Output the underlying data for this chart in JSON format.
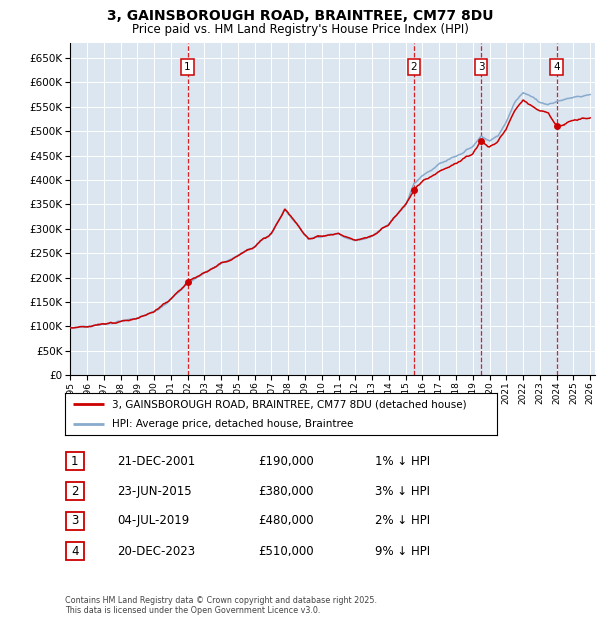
{
  "title": "3, GAINSBOROUGH ROAD, BRAINTREE, CM77 8DU",
  "subtitle": "Price paid vs. HM Land Registry's House Price Index (HPI)",
  "ylim": [
    0,
    680000
  ],
  "xlim_start": 1995.0,
  "xlim_end": 2026.3,
  "background_color": "#dce6f1",
  "grid_color": "#ffffff",
  "sale_color": "#cc0000",
  "hpi_color": "#88aacc",
  "sale_label": "3, GAINSBOROUGH ROAD, BRAINTREE, CM77 8DU (detached house)",
  "hpi_label": "HPI: Average price, detached house, Braintree",
  "transactions": [
    {
      "num": 1,
      "date": "21-DEC-2001",
      "price": 190000,
      "pct": "1%",
      "x": 2002.0
    },
    {
      "num": 2,
      "date": "23-JUN-2015",
      "price": 380000,
      "pct": "3%",
      "x": 2015.5
    },
    {
      "num": 3,
      "date": "04-JUL-2019",
      "price": 480000,
      "pct": "2%",
      "x": 2019.5
    },
    {
      "num": 4,
      "date": "20-DEC-2023",
      "price": 510000,
      "pct": "9%",
      "x": 2024.0
    }
  ],
  "footer": "Contains HM Land Registry data © Crown copyright and database right 2025.\nThis data is licensed under the Open Government Licence v3.0.",
  "hpi_anchors_x": [
    1995.0,
    1996.0,
    1997.0,
    1998.0,
    1999.0,
    2000.0,
    2001.0,
    2002.0,
    2003.0,
    2004.0,
    2005.0,
    2006.0,
    2007.0,
    2007.8,
    2008.5,
    2009.2,
    2010.0,
    2011.0,
    2012.0,
    2013.0,
    2014.0,
    2015.0,
    2015.5,
    2016.0,
    2016.5,
    2017.0,
    2017.5,
    2018.0,
    2018.5,
    2019.0,
    2019.5,
    2020.0,
    2020.5,
    2021.0,
    2021.5,
    2022.0,
    2022.5,
    2023.0,
    2023.5,
    2024.0,
    2024.5,
    2025.0,
    2025.5,
    2026.0
  ],
  "hpi_anchors_y": [
    97000,
    100000,
    104000,
    110000,
    116000,
    130000,
    155000,
    188000,
    210000,
    228000,
    245000,
    265000,
    290000,
    340000,
    310000,
    280000,
    285000,
    290000,
    275000,
    285000,
    310000,
    350000,
    392000,
    410000,
    420000,
    432000,
    440000,
    448000,
    458000,
    468000,
    490000,
    480000,
    490000,
    520000,
    560000,
    580000,
    570000,
    560000,
    555000,
    561000,
    565000,
    570000,
    572000,
    575000
  ],
  "sale_anchors_x": [
    1995.0,
    1996.0,
    1997.0,
    1998.0,
    1999.0,
    2000.0,
    2001.0,
    2002.0,
    2003.0,
    2004.0,
    2005.0,
    2006.0,
    2007.0,
    2007.8,
    2008.5,
    2009.2,
    2010.0,
    2011.0,
    2012.0,
    2013.0,
    2014.0,
    2015.0,
    2015.5,
    2016.0,
    2016.5,
    2017.0,
    2017.5,
    2018.0,
    2018.5,
    2019.0,
    2019.5,
    2020.0,
    2020.5,
    2021.0,
    2021.5,
    2022.0,
    2022.5,
    2023.0,
    2023.5,
    2024.0,
    2024.5,
    2025.0,
    2025.5,
    2026.0
  ],
  "sale_anchors_y": [
    97000,
    100000,
    104000,
    110000,
    116000,
    130000,
    155000,
    190000,
    210000,
    228000,
    245000,
    265000,
    290000,
    340000,
    310000,
    280000,
    285000,
    290000,
    275000,
    285000,
    310000,
    350000,
    380000,
    397000,
    407000,
    418000,
    427000,
    434000,
    444000,
    453000,
    480000,
    468000,
    477000,
    505000,
    543000,
    563000,
    553000,
    543000,
    538000,
    510000,
    515000,
    522000,
    525000,
    528000
  ]
}
